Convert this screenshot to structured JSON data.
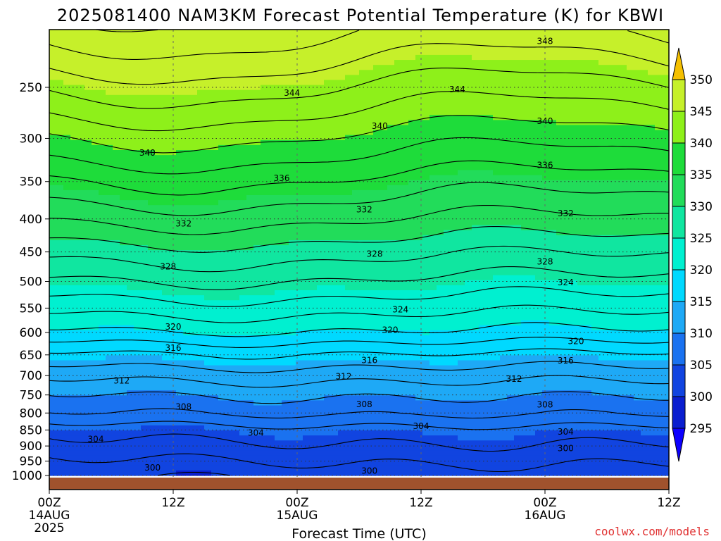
{
  "chart_data": {
    "type": "heatmap",
    "title": "2025081400 NAM3KM Forecast Potential Temperature (K) for KBWI",
    "xlabel": "Forecast Time (UTC)",
    "credit": "coolwx.com/models",
    "x_hours": [
      0,
      48
    ],
    "x_ticks": [
      {
        "hour": 0,
        "lines": [
          "00Z",
          "14AUG",
          "2025"
        ]
      },
      {
        "hour": 12,
        "lines": [
          "12Z"
        ]
      },
      {
        "hour": 24,
        "lines": [
          "00Z",
          "15AUG"
        ]
      },
      {
        "hour": 36,
        "lines": [
          "12Z"
        ]
      },
      {
        "hour": 48,
        "lines": [
          "00Z",
          "16AUG"
        ]
      },
      {
        "hour": 60,
        "lines": [
          "12Z"
        ]
      }
    ],
    "x_range_hours": [
      0,
      60
    ],
    "y_axis": {
      "log_pressure": true,
      "range_hpa": [
        1000,
        200
      ]
    },
    "y_ticks": [
      250,
      300,
      350,
      400,
      450,
      500,
      550,
      600,
      650,
      700,
      750,
      800,
      850,
      900,
      950,
      1000
    ],
    "colorbar": {
      "ticks": [
        295,
        300,
        305,
        310,
        315,
        320,
        325,
        330,
        335,
        340,
        345,
        350
      ],
      "colors": [
        "#0c00ff",
        "#0a1ecf",
        "#1144e0",
        "#1a72f0",
        "#1ea9f6",
        "#00d9ff",
        "#00f0d0",
        "#10e6a0",
        "#22dc5a",
        "#1edc3a",
        "#8ef01a",
        "#c6f02a",
        "#ffee00",
        "#f5c000"
      ]
    },
    "theta_profile_hpa_to_K": [
      [
        1000,
        300.5
      ],
      [
        950,
        302
      ],
      [
        900,
        303.5
      ],
      [
        850,
        305
      ],
      [
        800,
        308
      ],
      [
        750,
        310
      ],
      [
        700,
        312.5
      ],
      [
        650,
        315.5
      ],
      [
        600,
        319.5
      ],
      [
        550,
        322.5
      ],
      [
        500,
        325.5
      ],
      [
        450,
        328.5
      ],
      [
        400,
        332
      ],
      [
        350,
        335.5
      ],
      [
        300,
        339.5
      ],
      [
        250,
        344
      ],
      [
        200,
        349
      ]
    ],
    "contour_labels": [
      {
        "value": "348",
        "hour": 48,
        "hpa": 212
      },
      {
        "value": "344",
        "hour": 23.5,
        "hpa": 255
      },
      {
        "value": "344",
        "hour": 39.5,
        "hpa": 252
      },
      {
        "value": "340",
        "hour": 9.5,
        "hpa": 316
      },
      {
        "value": "340",
        "hour": 32,
        "hpa": 287
      },
      {
        "value": "340",
        "hour": 48,
        "hpa": 282
      },
      {
        "value": "336",
        "hour": 22.5,
        "hpa": 346
      },
      {
        "value": "336",
        "hour": 48,
        "hpa": 330
      },
      {
        "value": "332",
        "hour": 13,
        "hpa": 407
      },
      {
        "value": "332",
        "hour": 30.5,
        "hpa": 387
      },
      {
        "value": "332",
        "hour": 50,
        "hpa": 392
      },
      {
        "value": "328",
        "hour": 11.5,
        "hpa": 474
      },
      {
        "value": "328",
        "hour": 31.5,
        "hpa": 453
      },
      {
        "value": "328",
        "hour": 48,
        "hpa": 466
      },
      {
        "value": "324",
        "hour": 34,
        "hpa": 553
      },
      {
        "value": "324",
        "hour": 50,
        "hpa": 502
      },
      {
        "value": "320",
        "hour": 12,
        "hpa": 588
      },
      {
        "value": "320",
        "hour": 33,
        "hpa": 595
      },
      {
        "value": "320",
        "hour": 51,
        "hpa": 619
      },
      {
        "value": "316",
        "hour": 12,
        "hpa": 634
      },
      {
        "value": "316",
        "hour": 31,
        "hpa": 663
      },
      {
        "value": "316",
        "hour": 50,
        "hpa": 664
      },
      {
        "value": "312",
        "hour": 7,
        "hpa": 713
      },
      {
        "value": "312",
        "hour": 28.5,
        "hpa": 702
      },
      {
        "value": "312",
        "hour": 45,
        "hpa": 708
      },
      {
        "value": "308",
        "hour": 13,
        "hpa": 782
      },
      {
        "value": "308",
        "hour": 30.5,
        "hpa": 776
      },
      {
        "value": "308",
        "hour": 48,
        "hpa": 777
      },
      {
        "value": "304",
        "hour": 4.5,
        "hpa": 879
      },
      {
        "value": "304",
        "hour": 20,
        "hpa": 859
      },
      {
        "value": "304",
        "hour": 36,
        "hpa": 838
      },
      {
        "value": "304",
        "hour": 50,
        "hpa": 856
      },
      {
        "value": "300",
        "hour": 10,
        "hpa": 973
      },
      {
        "value": "300",
        "hour": 31,
        "hpa": 984
      },
      {
        "value": "300",
        "hour": 50,
        "hpa": 908
      }
    ]
  }
}
